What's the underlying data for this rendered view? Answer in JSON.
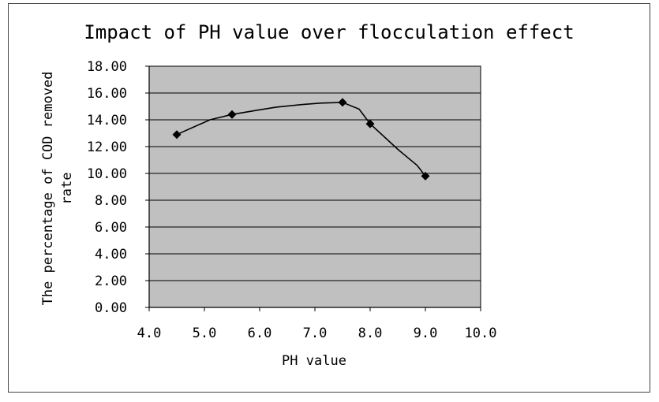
{
  "chart_data": {
    "type": "line",
    "title": "Impact of PH value over flocculation effect",
    "xlabel": "PH value",
    "ylabel_line1": "The percentage of COD removed",
    "ylabel_line2": "rate",
    "xlim": [
      4.0,
      10.0
    ],
    "ylim": [
      0.0,
      18.0
    ],
    "x_ticks": [
      "4.0",
      "5.0",
      "6.0",
      "7.0",
      "8.0",
      "9.0",
      "10.0"
    ],
    "x_tick_values": [
      4,
      5,
      6,
      7,
      8,
      9,
      10
    ],
    "y_ticks": [
      "0.00",
      "2.00",
      "4.00",
      "6.00",
      "8.00",
      "10.00",
      "12.00",
      "14.00",
      "16.00",
      "18.00"
    ],
    "y_tick_values": [
      0,
      2,
      4,
      6,
      8,
      10,
      12,
      14,
      16,
      18
    ],
    "grid": true,
    "series": [
      {
        "name": "COD removed rate",
        "x": [
          4.5,
          5.5,
          7.5,
          8.0,
          9.0
        ],
        "y": [
          12.9,
          14.4,
          15.3,
          13.7,
          9.8
        ]
      }
    ],
    "smooth_curve": {
      "x": [
        4.5,
        5.1,
        5.5,
        6.0,
        6.3,
        6.8,
        7.1,
        7.5,
        7.8,
        8.0,
        8.5,
        8.85,
        9.0
      ],
      "y": [
        12.9,
        14.0,
        14.4,
        14.75,
        14.95,
        15.15,
        15.25,
        15.3,
        14.8,
        13.7,
        11.8,
        10.6,
        9.8
      ]
    },
    "colors": {
      "plot_bg": "#c0c0c0",
      "line": "#000000",
      "grid": "#000000"
    }
  }
}
